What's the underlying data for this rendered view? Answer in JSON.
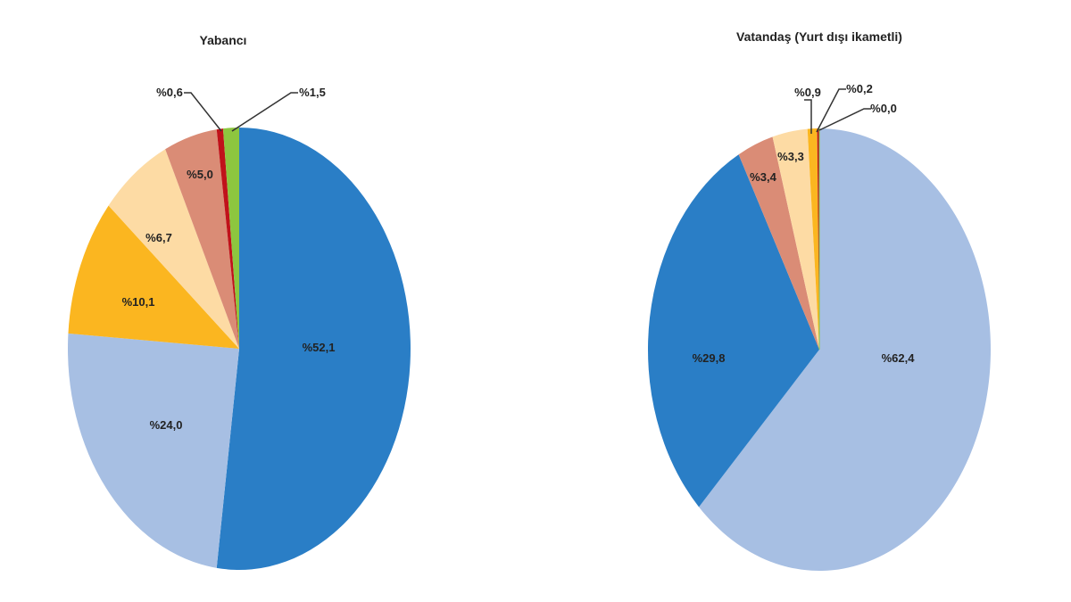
{
  "chart_data": [
    {
      "type": "pie",
      "title": "Yabancı",
      "slices": [
        {
          "label": "%52,1",
          "value": 52.1,
          "color": "#2A7EC6"
        },
        {
          "label": "%24,0",
          "value": 24.0,
          "color": "#A7BFE3"
        },
        {
          "label": "%10,1",
          "value": 10.1,
          "color": "#FBB620"
        },
        {
          "label": "%6,7",
          "value": 6.7,
          "color": "#FDDBA4"
        },
        {
          "label": "%5,0",
          "value": 5.0,
          "color": "#DA8C76"
        },
        {
          "label": "%0,6",
          "value": 0.6,
          "color": "#C0121A"
        },
        {
          "label": "%1,5",
          "value": 1.5,
          "color": "#8DC63F"
        }
      ]
    },
    {
      "type": "pie",
      "title": "Vatandaş (Yurt dışı ikametli)",
      "slices": [
        {
          "label": "%62,4",
          "value": 62.4,
          "color": "#A7BFE3"
        },
        {
          "label": "%29,8",
          "value": 29.8,
          "color": "#2A7EC6"
        },
        {
          "label": "%3,4",
          "value": 3.4,
          "color": "#DA8C76"
        },
        {
          "label": "%3,3",
          "value": 3.3,
          "color": "#FDDBA4"
        },
        {
          "label": "%0,9",
          "value": 0.9,
          "color": "#FBB620"
        },
        {
          "label": "%0,2",
          "value": 0.2,
          "color": "#C0121A"
        },
        {
          "label": "%0,0",
          "value": 0.0,
          "color": "#8DC63F"
        }
      ]
    }
  ]
}
